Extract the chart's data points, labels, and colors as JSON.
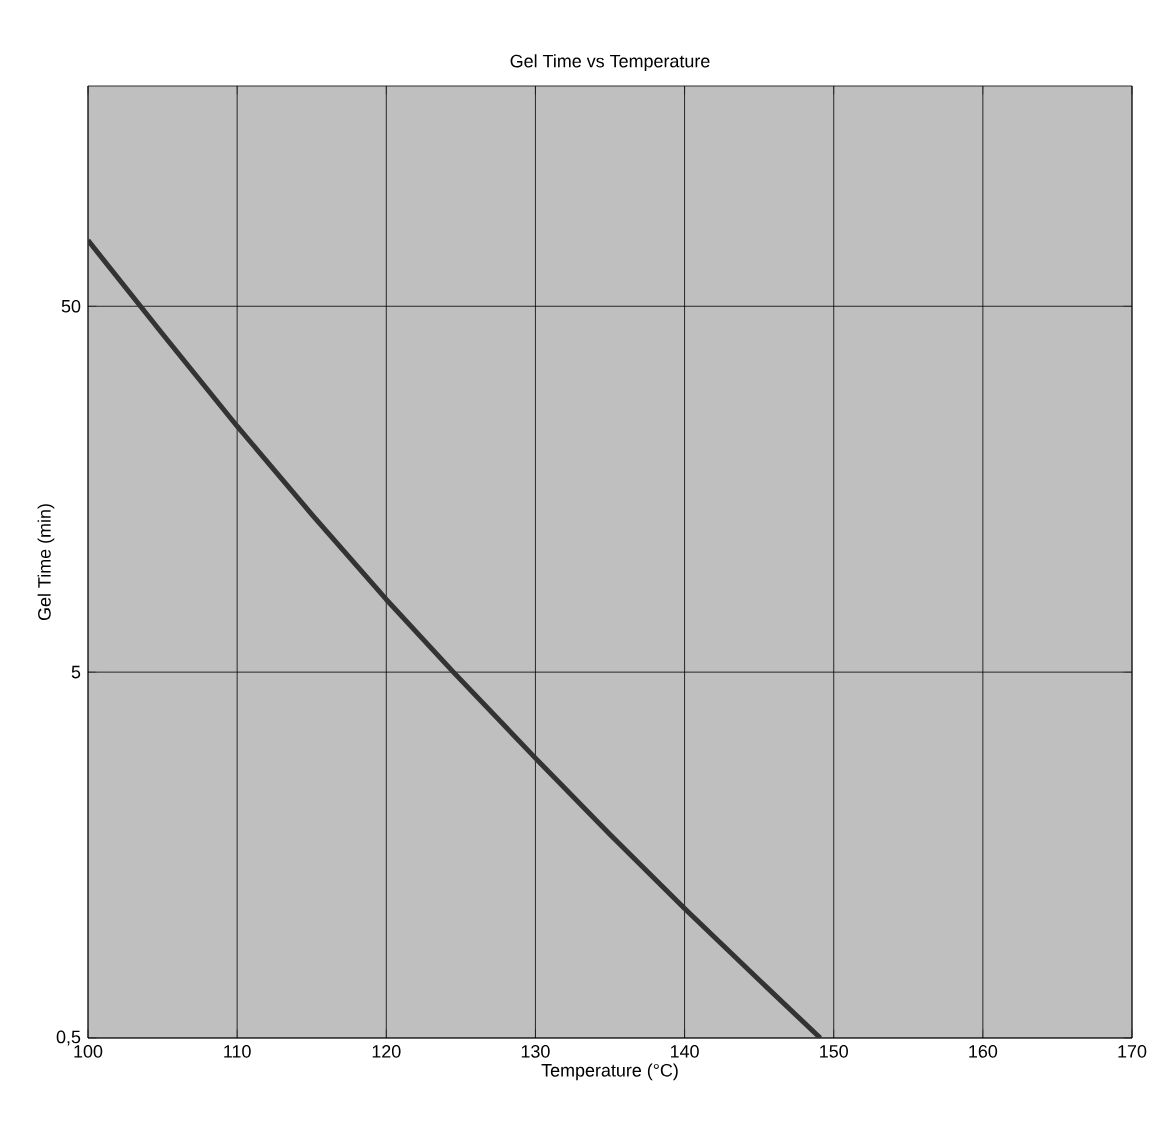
{
  "chart_data": {
    "type": "line",
    "title": "Gel Time vs Temperature",
    "xlabel": "Temperature (°C)",
    "ylabel": "Gel Time (min)",
    "x": [
      100,
      105,
      110,
      115,
      120,
      124.5,
      130,
      135,
      140,
      145,
      149.1
    ],
    "series": [
      {
        "color": "#333333",
        "values": [
          75.7,
          42,
          23.5,
          13.5,
          7.9,
          5,
          2.91,
          1.8,
          1.13,
          0.72,
          0.5
        ]
      }
    ],
    "log": "y",
    "xlim": [
      100,
      170
    ],
    "xticks": [
      100,
      110,
      120,
      130,
      140,
      150,
      160,
      170
    ],
    "ylim": [
      0.5,
      200
    ],
    "yticks": [
      {
        "value": 0.5,
        "label": "0,5"
      },
      5,
      50
    ],
    "grid": true,
    "marker": "none",
    "line_style": "solid"
  }
}
